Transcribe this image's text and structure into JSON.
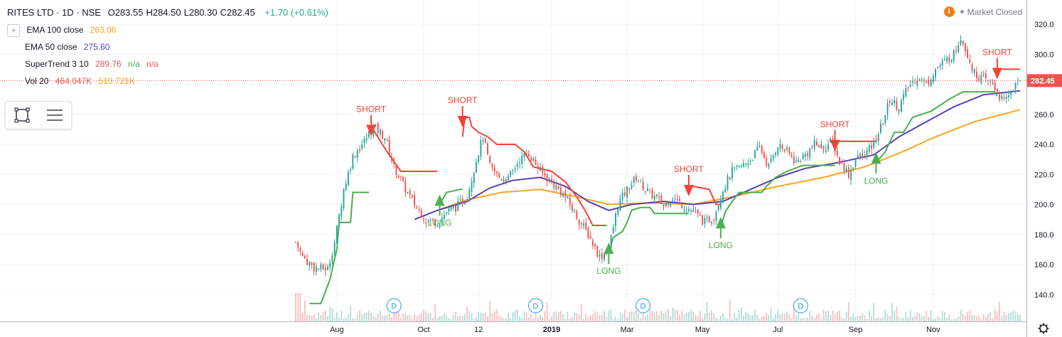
{
  "header": {
    "symbol": "RITES LTD · 1D · NSE",
    "ohlc": [
      {
        "key": "O",
        "value": "283.55"
      },
      {
        "key": "H",
        "value": "284.50"
      },
      {
        "key": "L",
        "value": "280.30"
      },
      {
        "key": "C",
        "value": "282.45"
      }
    ],
    "change": "+1.70 (+0.61%)",
    "market_status": "Market Closed",
    "warning_glyph": "!"
  },
  "indicators": {
    "ema100": {
      "label": "EMA 100 close",
      "value": "263.06",
      "color": "#f5a623"
    },
    "ema50": {
      "label": "EMA 50 close",
      "value": "275.60",
      "color": "#5b3fb5"
    },
    "supertrend": {
      "label": "SuperTrend 3 10",
      "value": "289.76",
      "na1": "n/a",
      "na2": "n/a"
    },
    "vol": {
      "label": "Vol 20",
      "value1": "464.047K",
      "value2": "510.721K"
    }
  },
  "colors": {
    "up": "#26a69a",
    "down": "#ef5350",
    "long": "#4caf50",
    "short": "#f44336",
    "ema100": "#f5a623",
    "ema50": "#5b3fb5",
    "grid": "#f0f3fa",
    "text": "#131722"
  },
  "chart_data": {
    "type": "candlestick",
    "title": "RITES LTD · 1D · NSE",
    "x_ticks": [
      "Aug",
      "Oct",
      "12",
      "2019",
      "Mar",
      "May",
      "Jul",
      "Sep",
      "Nov"
    ],
    "y_ticks": [
      140,
      160,
      180,
      200,
      220,
      240,
      260,
      280,
      300,
      320
    ],
    "ylim": [
      122,
      331
    ],
    "last_price": "282.45",
    "close_path": [
      {
        "t": 0,
        "v": 175
      },
      {
        "t": 3,
        "v": 165
      },
      {
        "t": 8,
        "v": 158
      },
      {
        "t": 14,
        "v": 157
      },
      {
        "t": 17,
        "v": 175
      },
      {
        "t": 21,
        "v": 210
      },
      {
        "t": 25,
        "v": 232
      },
      {
        "t": 30,
        "v": 242
      },
      {
        "t": 34,
        "v": 252
      },
      {
        "t": 39,
        "v": 245
      },
      {
        "t": 43,
        "v": 225
      },
      {
        "t": 48,
        "v": 210
      },
      {
        "t": 52,
        "v": 200
      },
      {
        "t": 57,
        "v": 190
      },
      {
        "t": 62,
        "v": 188
      },
      {
        "t": 66,
        "v": 195
      },
      {
        "t": 70,
        "v": 198
      },
      {
        "t": 75,
        "v": 205
      },
      {
        "t": 79,
        "v": 230
      },
      {
        "t": 82,
        "v": 245
      },
      {
        "t": 85,
        "v": 225
      },
      {
        "t": 89,
        "v": 218
      },
      {
        "t": 93,
        "v": 217
      },
      {
        "t": 98,
        "v": 230
      },
      {
        "t": 102,
        "v": 234
      },
      {
        "t": 107,
        "v": 222
      },
      {
        "t": 112,
        "v": 215
      },
      {
        "t": 118,
        "v": 205
      },
      {
        "t": 123,
        "v": 192
      },
      {
        "t": 128,
        "v": 180
      },
      {
        "t": 133,
        "v": 165
      },
      {
        "t": 137,
        "v": 170
      },
      {
        "t": 141,
        "v": 200
      },
      {
        "t": 145,
        "v": 210
      },
      {
        "t": 149,
        "v": 218
      },
      {
        "t": 153,
        "v": 210
      },
      {
        "t": 157,
        "v": 205
      },
      {
        "t": 161,
        "v": 200
      },
      {
        "t": 165,
        "v": 205
      },
      {
        "t": 169,
        "v": 200
      },
      {
        "t": 174,
        "v": 195
      },
      {
        "t": 179,
        "v": 188
      },
      {
        "t": 183,
        "v": 192
      },
      {
        "t": 187,
        "v": 210
      },
      {
        "t": 191,
        "v": 222
      },
      {
        "t": 195,
        "v": 225
      },
      {
        "t": 199,
        "v": 230
      },
      {
        "t": 203,
        "v": 238
      },
      {
        "t": 207,
        "v": 225
      },
      {
        "t": 211,
        "v": 240
      },
      {
        "t": 215,
        "v": 235
      },
      {
        "t": 219,
        "v": 228
      },
      {
        "t": 223,
        "v": 233
      },
      {
        "t": 227,
        "v": 240
      },
      {
        "t": 231,
        "v": 238
      },
      {
        "t": 235,
        "v": 242
      },
      {
        "t": 238,
        "v": 228
      },
      {
        "t": 240,
        "v": 225
      },
      {
        "t": 242,
        "v": 220
      },
      {
        "t": 245,
        "v": 230
      },
      {
        "t": 249,
        "v": 233
      },
      {
        "t": 253,
        "v": 240
      },
      {
        "t": 257,
        "v": 255
      },
      {
        "t": 260,
        "v": 270
      },
      {
        "t": 264,
        "v": 265
      },
      {
        "t": 268,
        "v": 278
      },
      {
        "t": 272,
        "v": 285
      },
      {
        "t": 276,
        "v": 280
      },
      {
        "t": 280,
        "v": 290
      },
      {
        "t": 284,
        "v": 295
      },
      {
        "t": 288,
        "v": 300
      },
      {
        "t": 291,
        "v": 312
      },
      {
        "t": 294,
        "v": 300
      },
      {
        "t": 297,
        "v": 287
      },
      {
        "t": 301,
        "v": 283
      },
      {
        "t": 305,
        "v": 280
      },
      {
        "t": 308,
        "v": 272
      },
      {
        "t": 310,
        "v": 268
      },
      {
        "t": 313,
        "v": 276
      },
      {
        "t": 317,
        "v": 282.45
      }
    ],
    "ema50": [
      {
        "t": 52,
        "v": 190
      },
      {
        "t": 62,
        "v": 196
      },
      {
        "t": 75,
        "v": 202
      },
      {
        "t": 85,
        "v": 211
      },
      {
        "t": 95,
        "v": 216
      },
      {
        "t": 107,
        "v": 218
      },
      {
        "t": 118,
        "v": 212
      },
      {
        "t": 128,
        "v": 202
      },
      {
        "t": 137,
        "v": 196
      },
      {
        "t": 147,
        "v": 200
      },
      {
        "t": 161,
        "v": 202
      },
      {
        "t": 174,
        "v": 200
      },
      {
        "t": 187,
        "v": 202
      },
      {
        "t": 199,
        "v": 210
      },
      {
        "t": 211,
        "v": 218
      },
      {
        "t": 223,
        "v": 224
      },
      {
        "t": 238,
        "v": 228
      },
      {
        "t": 253,
        "v": 233
      },
      {
        "t": 264,
        "v": 245
      },
      {
        "t": 276,
        "v": 255
      },
      {
        "t": 288,
        "v": 265
      },
      {
        "t": 301,
        "v": 273
      },
      {
        "t": 317,
        "v": 275.6
      }
    ],
    "ema100": [
      {
        "t": 62,
        "v": 196
      },
      {
        "t": 75,
        "v": 203
      },
      {
        "t": 90,
        "v": 208
      },
      {
        "t": 107,
        "v": 210
      },
      {
        "t": 123,
        "v": 205
      },
      {
        "t": 137,
        "v": 200
      },
      {
        "t": 155,
        "v": 201
      },
      {
        "t": 174,
        "v": 200
      },
      {
        "t": 191,
        "v": 205
      },
      {
        "t": 211,
        "v": 212
      },
      {
        "t": 231,
        "v": 218
      },
      {
        "t": 249,
        "v": 225
      },
      {
        "t": 264,
        "v": 234
      },
      {
        "t": 280,
        "v": 245
      },
      {
        "t": 297,
        "v": 255
      },
      {
        "t": 317,
        "v": 263.06
      }
    ],
    "supertrend": [
      {
        "name": "long",
        "color": "#4caf50",
        "points": [
          {
            "t": 6,
            "v": 134
          },
          {
            "t": 11,
            "v": 134
          },
          {
            "t": 15,
            "v": 150
          },
          {
            "t": 18,
            "v": 170
          },
          {
            "t": 19,
            "v": 188
          },
          {
            "t": 24,
            "v": 188
          },
          {
            "t": 25,
            "v": 208
          },
          {
            "t": 32,
            "v": 208
          },
          {
            "t": 32,
            "v": 208
          }
        ]
      },
      {
        "name": "short",
        "color": "#f44336",
        "points": [
          {
            "t": 33,
            "v": 252
          },
          {
            "t": 40,
            "v": 235
          },
          {
            "t": 46,
            "v": 222
          },
          {
            "t": 61,
            "v": 222
          },
          {
            "t": 62,
            "v": 222
          }
        ]
      },
      {
        "name": "long",
        "color": "#4caf50",
        "points": [
          {
            "t": 63,
            "v": 200
          },
          {
            "t": 66,
            "v": 208
          },
          {
            "t": 72,
            "v": 210
          },
          {
            "t": 73,
            "v": 210
          }
        ]
      },
      {
        "name": "short",
        "color": "#f44336",
        "points": [
          {
            "t": 73,
            "v": 245
          },
          {
            "t": 74,
            "v": 258
          },
          {
            "t": 76,
            "v": 258
          },
          {
            "t": 77,
            "v": 252
          },
          {
            "t": 80,
            "v": 248
          },
          {
            "t": 84,
            "v": 245
          },
          {
            "t": 88,
            "v": 240
          },
          {
            "t": 96,
            "v": 240
          },
          {
            "t": 100,
            "v": 235
          },
          {
            "t": 104,
            "v": 225
          },
          {
            "t": 112,
            "v": 222
          },
          {
            "t": 118,
            "v": 215
          },
          {
            "t": 123,
            "v": 205
          },
          {
            "t": 127,
            "v": 195
          },
          {
            "t": 130,
            "v": 186
          },
          {
            "t": 136,
            "v": 186
          }
        ]
      },
      {
        "name": "long",
        "color": "#4caf50",
        "points": [
          {
            "t": 137,
            "v": 168
          },
          {
            "t": 139,
            "v": 178
          },
          {
            "t": 143,
            "v": 182
          },
          {
            "t": 145,
            "v": 188
          },
          {
            "t": 147,
            "v": 196
          },
          {
            "t": 151,
            "v": 198
          },
          {
            "t": 155,
            "v": 198
          },
          {
            "t": 157,
            "v": 194
          },
          {
            "t": 170,
            "v": 194
          },
          {
            "t": 172,
            "v": 194
          }
        ]
      },
      {
        "name": "short",
        "color": "#f44336",
        "points": [
          {
            "t": 172,
            "v": 212
          },
          {
            "t": 174,
            "v": 212
          },
          {
            "t": 181,
            "v": 210
          },
          {
            "t": 184,
            "v": 200
          },
          {
            "t": 186,
            "v": 200
          }
        ]
      },
      {
        "name": "long",
        "color": "#4caf50",
        "points": [
          {
            "t": 186,
            "v": 185
          },
          {
            "t": 188,
            "v": 195
          },
          {
            "t": 191,
            "v": 202
          },
          {
            "t": 194,
            "v": 208
          },
          {
            "t": 204,
            "v": 208
          },
          {
            "t": 206,
            "v": 212
          },
          {
            "t": 210,
            "v": 218
          },
          {
            "t": 215,
            "v": 222
          },
          {
            "t": 222,
            "v": 226
          },
          {
            "t": 235,
            "v": 226
          },
          {
            "t": 236,
            "v": 226
          }
        ]
      },
      {
        "name": "short",
        "color": "#f44336",
        "points": [
          {
            "t": 236,
            "v": 242
          },
          {
            "t": 253,
            "v": 242
          },
          {
            "t": 254,
            "v": 242
          }
        ]
      },
      {
        "name": "long",
        "color": "#4caf50",
        "points": [
          {
            "t": 254,
            "v": 228
          },
          {
            "t": 258,
            "v": 235
          },
          {
            "t": 262,
            "v": 248
          },
          {
            "t": 266,
            "v": 248
          },
          {
            "t": 270,
            "v": 258
          },
          {
            "t": 278,
            "v": 262
          },
          {
            "t": 286,
            "v": 270
          },
          {
            "t": 292,
            "v": 275
          },
          {
            "t": 303,
            "v": 275
          },
          {
            "t": 306,
            "v": 275
          },
          {
            "t": 307,
            "v": 272
          }
        ]
      },
      {
        "name": "short",
        "color": "#f44336",
        "points": [
          {
            "t": 307,
            "v": 290
          },
          {
            "t": 317,
            "v": 290
          }
        ]
      }
    ],
    "signals": [
      {
        "type": "SHORT",
        "t": 33,
        "v": 252
      },
      {
        "type": "LONG",
        "t": 63,
        "v": 200
      },
      {
        "type": "SHORT",
        "t": 73,
        "v": 258
      },
      {
        "type": "LONG",
        "t": 137,
        "v": 168
      },
      {
        "type": "SHORT",
        "t": 172,
        "v": 212
      },
      {
        "type": "LONG",
        "t": 186,
        "v": 185
      },
      {
        "type": "SHORT",
        "t": 236,
        "v": 242
      },
      {
        "type": "LONG",
        "t": 254,
        "v": 228
      },
      {
        "type": "SHORT",
        "t": 307,
        "v": 290
      }
    ],
    "dividend_markers": [
      "D",
      "D",
      "D",
      "D"
    ],
    "dividend_t": [
      43,
      105,
      152,
      221
    ]
  }
}
